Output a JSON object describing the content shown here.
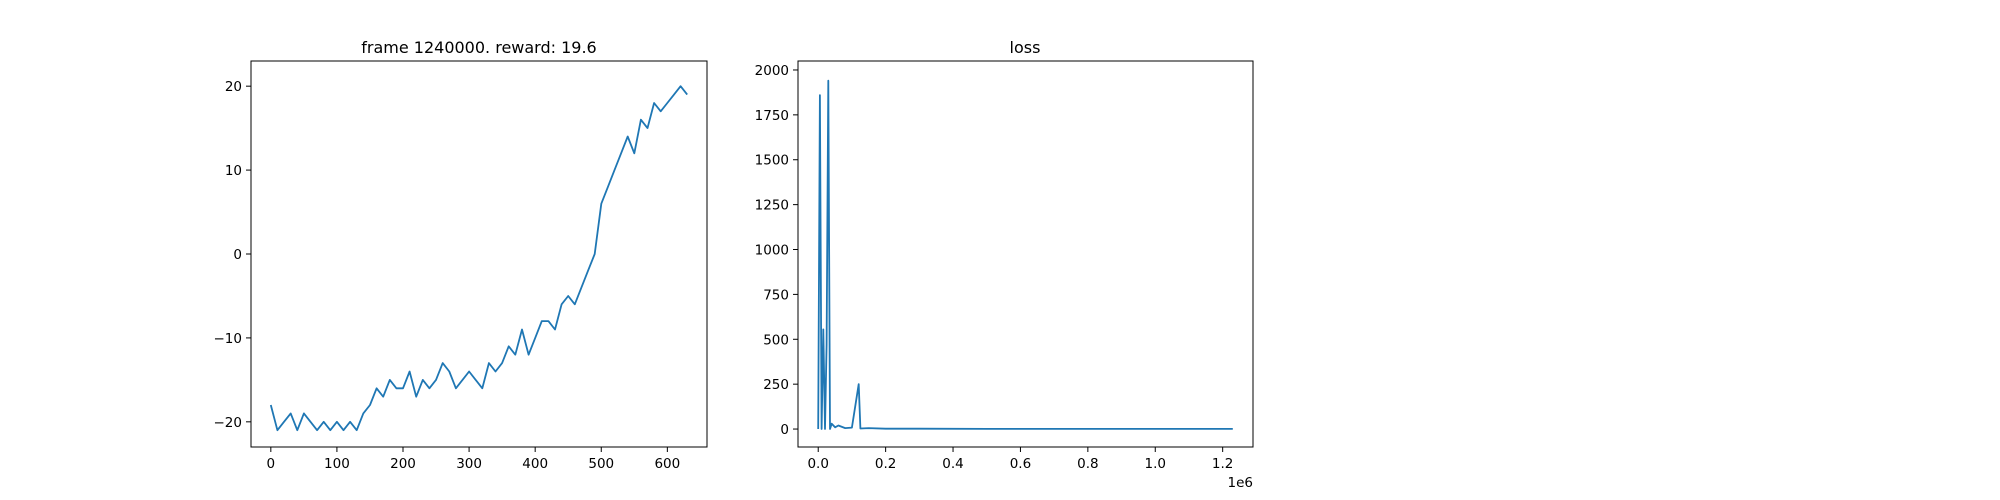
{
  "colors": {
    "series": "#1f77b4",
    "axis": "#000000",
    "background": "#ffffff"
  },
  "chart_data": [
    {
      "type": "line",
      "title": "frame 1240000. reward: 19.6",
      "xlabel": "",
      "ylabel": "",
      "xlim": [
        -30,
        660
      ],
      "ylim": [
        -23,
        23
      ],
      "x_ticks": [
        0,
        100,
        200,
        300,
        400,
        500,
        600
      ],
      "x_tick_labels": [
        "0",
        "100",
        "200",
        "300",
        "400",
        "500",
        "600"
      ],
      "y_ticks": [
        -20,
        -10,
        0,
        10,
        20
      ],
      "y_tick_labels": [
        "−20",
        "−10",
        "0",
        "10",
        "20"
      ],
      "grid": false,
      "series": [
        {
          "x": [
            0,
            10,
            20,
            30,
            40,
            50,
            60,
            70,
            80,
            90,
            100,
            110,
            120,
            130,
            140,
            150,
            160,
            170,
            180,
            190,
            200,
            210,
            220,
            230,
            240,
            250,
            260,
            270,
            280,
            290,
            300,
            310,
            320,
            330,
            340,
            350,
            360,
            370,
            380,
            390,
            400,
            410,
            420,
            430,
            440,
            450,
            460,
            470,
            480,
            490,
            500,
            510,
            520,
            530,
            540,
            550,
            560,
            570,
            580,
            590,
            600,
            610,
            620,
            630
          ],
          "values": [
            -18,
            -21,
            -20,
            -19,
            -21,
            -19,
            -20,
            -21,
            -20,
            -21,
            -20,
            -21,
            -20,
            -21,
            -19,
            -18,
            -16,
            -17,
            -15,
            -16,
            -16,
            -14,
            -17,
            -15,
            -16,
            -15,
            -13,
            -14,
            -16,
            -15,
            -14,
            -15,
            -16,
            -13,
            -14,
            -13,
            -11,
            -12,
            -9,
            -12,
            -10,
            -8,
            -8,
            -9,
            -6,
            -5,
            -6,
            -4,
            -2,
            0,
            6,
            8,
            10,
            12,
            14,
            12,
            16,
            15,
            18,
            17,
            18,
            19,
            20,
            19
          ]
        }
      ]
    },
    {
      "type": "line",
      "title": "loss",
      "xlabel": "",
      "ylabel": "",
      "xlim": [
        -60000,
        1290000
      ],
      "ylim": [
        -100,
        2050
      ],
      "x_ticks": [
        0,
        200000,
        400000,
        600000,
        800000,
        1000000,
        1200000
      ],
      "x_tick_labels": [
        "0.0",
        "0.2",
        "0.4",
        "0.6",
        "0.8",
        "1.0",
        "1.2"
      ],
      "x_offset_label": "1e6",
      "y_ticks": [
        0,
        250,
        500,
        750,
        1000,
        1250,
        1500,
        1750,
        2000
      ],
      "y_tick_labels": [
        "0",
        "250",
        "500",
        "750",
        "1000",
        "1250",
        "1500",
        "1750",
        "2000"
      ],
      "grid": false,
      "series": [
        {
          "x": [
            0,
            5000,
            10000,
            15000,
            20000,
            25000,
            30000,
            35000,
            40000,
            50000,
            60000,
            80000,
            100000,
            120000,
            125000,
            150000,
            200000,
            300000,
            500000,
            800000,
            1000000,
            1230000
          ],
          "values": [
            0,
            1860,
            0,
            555,
            0,
            470,
            1940,
            0,
            30,
            10,
            20,
            5,
            8,
            250,
            3,
            5,
            2,
            2,
            1,
            1,
            1,
            1
          ]
        }
      ]
    }
  ]
}
